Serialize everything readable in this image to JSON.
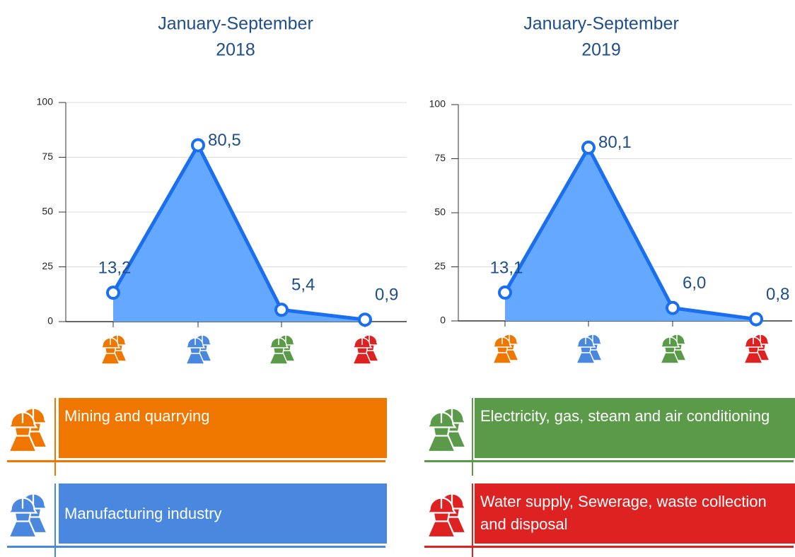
{
  "chart_data": [
    {
      "type": "area",
      "title": "January-September",
      "subtitle": "2018",
      "categories": [
        null,
        null,
        null,
        null
      ],
      "values": [
        13.2,
        80.5,
        5.4,
        0.9
      ],
      "value_labels": [
        "13,2",
        "80,5",
        "5,4",
        "0,9"
      ],
      "color": "#1a6ff0",
      "fill": "#64a8ff",
      "ylim": [
        0,
        100
      ],
      "yticks": [
        0,
        25,
        50,
        75,
        100
      ],
      "grid": true
    },
    {
      "type": "area",
      "title": "January-September",
      "subtitle": "2019",
      "categories": [
        null,
        null,
        null,
        null
      ],
      "values": [
        13.1,
        80.1,
        6.0,
        0.8
      ],
      "value_labels": [
        "13,1",
        "80,1",
        "6,0",
        "0,8"
      ],
      "color": "#1a6ff0",
      "fill": "#64a8ff",
      "ylim": [
        0,
        100
      ],
      "yticks": [
        0,
        25,
        50,
        75,
        100
      ],
      "grid": true
    }
  ],
  "legend": {
    "items": [
      {
        "label": "Mining and quarrying",
        "color": "#ef7700"
      },
      {
        "label": "Manufacturing industry",
        "color": "#4a88e0"
      },
      {
        "label": "Electricity, gas, steam and air conditioning",
        "color": "#5a9a48"
      },
      {
        "label": "Water supply, Sewerage, waste collection and disposal",
        "color": "#de2222"
      }
    ]
  }
}
